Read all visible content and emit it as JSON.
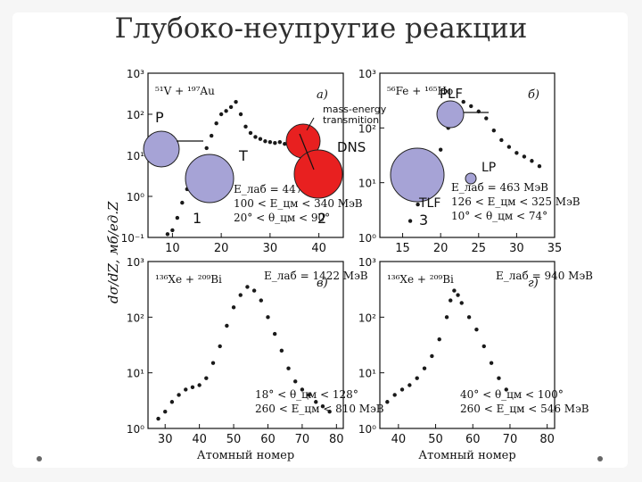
{
  "slide": {
    "title": "Глубоко-неупругие реакции"
  },
  "colors": {
    "points": "#1a1a1a",
    "blue_circle": "#a6a3d6",
    "red_circle": "#e82020",
    "axis": "#111111"
  },
  "ylabel": "dσ/dZ, мб/ед.Z",
  "chart_data": [
    {
      "panel": "а",
      "type": "scatter",
      "reaction": "⁵¹V + ¹⁹⁷Au",
      "energy_lines": [
        "E_лаб = 447 МэВ",
        "100 < E_цм < 340 МэВ",
        "20° < θ_цм < 90°"
      ],
      "xlim": [
        5,
        45
      ],
      "xticks": [
        10,
        20,
        30,
        40
      ],
      "ylog": true,
      "ylim": [
        0.1,
        1000
      ],
      "yticks": [
        "10⁻¹",
        "10⁰",
        "10¹",
        "10²",
        "10³"
      ],
      "annotations": [
        "P",
        "T",
        "DNS",
        "1",
        "2",
        "mass-energy transmition"
      ],
      "x": [
        9,
        10,
        11,
        12,
        13,
        14,
        15,
        16,
        17,
        18,
        19,
        20,
        21,
        22,
        23,
        24,
        25,
        26,
        27,
        28,
        29,
        30,
        31,
        32,
        33,
        34,
        35,
        36,
        37,
        38,
        39,
        40
      ],
      "y": [
        0.12,
        0.15,
        0.3,
        0.7,
        1.5,
        3,
        5,
        8,
        15,
        30,
        60,
        100,
        120,
        150,
        200,
        100,
        50,
        35,
        28,
        25,
        22,
        21,
        20,
        21,
        19,
        18,
        17,
        16,
        14,
        12,
        10,
        8
      ]
    },
    {
      "panel": "б",
      "type": "scatter",
      "reaction": "⁵⁶Fe + ¹⁶⁵Ho",
      "energy_lines": [
        "E_лаб = 463 МэВ",
        "126 < E_цм < 325 МэВ",
        "10° < θ_цм < 74°"
      ],
      "xlim": [
        12,
        35
      ],
      "xticks": [
        15,
        20,
        25,
        30,
        35
      ],
      "ylog": true,
      "ylim": [
        1,
        1000
      ],
      "yticks": [
        "10⁰",
        "10¹",
        "10²",
        "10³"
      ],
      "annotations": [
        "PLF",
        "LP",
        "TLF",
        "3"
      ],
      "x": [
        16,
        17,
        18,
        19,
        20,
        21,
        22,
        23,
        24,
        25,
        26,
        27,
        28,
        29,
        30,
        31,
        32,
        33
      ],
      "y": [
        2,
        4,
        8,
        15,
        40,
        100,
        200,
        300,
        250,
        200,
        150,
        90,
        60,
        45,
        35,
        30,
        25,
        20
      ]
    },
    {
      "panel": "в",
      "type": "scatter",
      "reaction": "¹³⁶Xe + ²⁰⁹Bi",
      "energy_lines": [
        "E_лаб = 1422 МэВ",
        "18° < θ_цм < 128°",
        "260 < E_цм < 810 МэВ"
      ],
      "xlabel": "Атомный номер",
      "xlim": [
        25,
        82
      ],
      "xticks": [
        30,
        40,
        50,
        60,
        70,
        80
      ],
      "ylog": true,
      "ylim": [
        1,
        1000
      ],
      "yticks": [
        "10⁰",
        "10¹",
        "10²",
        "10³"
      ],
      "x": [
        28,
        30,
        32,
        34,
        36,
        38,
        40,
        42,
        44,
        46,
        48,
        50,
        52,
        54,
        56,
        58,
        60,
        62,
        64,
        66,
        68,
        70,
        72,
        74,
        76,
        78
      ],
      "y": [
        1.5,
        2,
        3,
        4,
        5,
        5.5,
        6,
        8,
        15,
        30,
        70,
        150,
        250,
        350,
        300,
        200,
        100,
        50,
        25,
        12,
        7,
        5,
        4,
        3,
        2.5,
        2
      ]
    },
    {
      "panel": "г",
      "type": "scatter",
      "reaction": "¹³⁶Xe + ²⁰⁹Bi",
      "energy_lines": [
        "E_лаб = 940 МэВ",
        "40° < θ_цм < 100°",
        "260 < E_цм < 546 МэВ"
      ],
      "xlabel": "Атомный номер",
      "xlim": [
        35,
        82
      ],
      "xticks": [
        40,
        50,
        60,
        70,
        80
      ],
      "ylog": true,
      "ylim": [
        1,
        1000
      ],
      "yticks": [
        "10⁰",
        "10¹",
        "10²",
        "10³"
      ],
      "x": [
        37,
        39,
        41,
        43,
        45,
        47,
        49,
        51,
        53,
        54,
        55,
        56,
        57,
        59,
        61,
        63,
        65,
        67,
        69
      ],
      "y": [
        3,
        4,
        5,
        6,
        8,
        12,
        20,
        40,
        100,
        200,
        300,
        250,
        180,
        100,
        60,
        30,
        15,
        8,
        5
      ]
    }
  ]
}
